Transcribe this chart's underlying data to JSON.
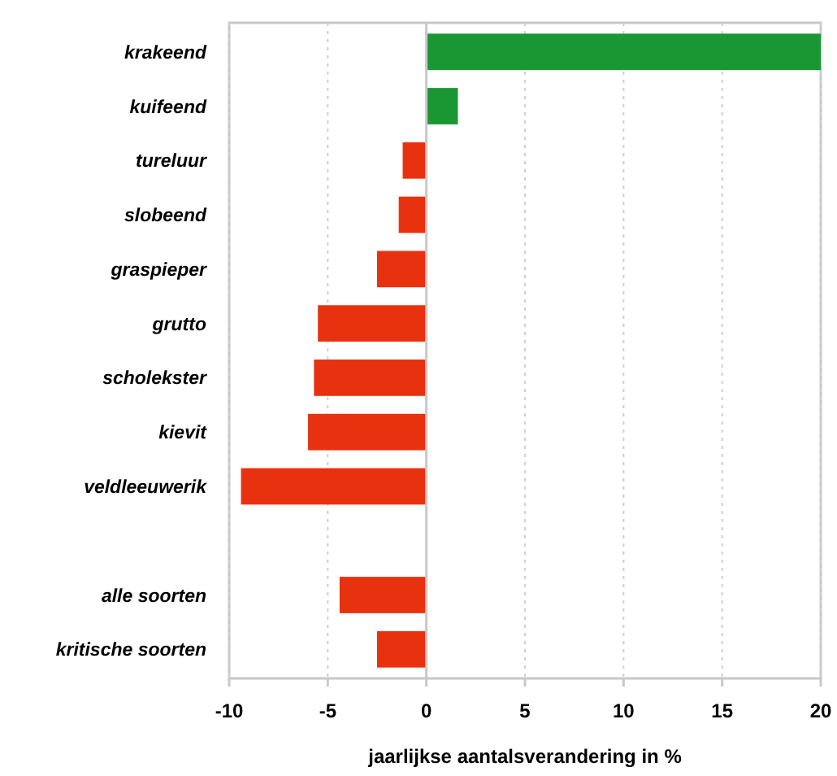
{
  "chart_data": {
    "type": "bar",
    "orientation": "horizontal",
    "xlabel": "jaarlijkse aantalsverandering in %",
    "categories": [
      "krakeend",
      "kuifeend",
      "tureluur",
      "slobeend",
      "graspieper",
      "grutto",
      "scholekster",
      "kievit",
      "veldleeuwerik",
      null,
      "alle soorten",
      "kritische soorten"
    ],
    "values": [
      20,
      1.6,
      -1.2,
      -1.4,
      -2.5,
      -5.5,
      -5.7,
      -6.0,
      -9.4,
      null,
      -4.4,
      -2.5
    ],
    "colors": [
      "#1a9632",
      "#1a9632",
      "#e8320f",
      "#e8320f",
      "#e8320f",
      "#e8320f",
      "#e8320f",
      "#e8320f",
      "#e8320f",
      null,
      "#e8320f",
      "#e8320f"
    ],
    "xlim": [
      -10,
      20
    ],
    "xticks": [
      -10,
      -5,
      0,
      5,
      10,
      15,
      20
    ],
    "grid": "x"
  }
}
